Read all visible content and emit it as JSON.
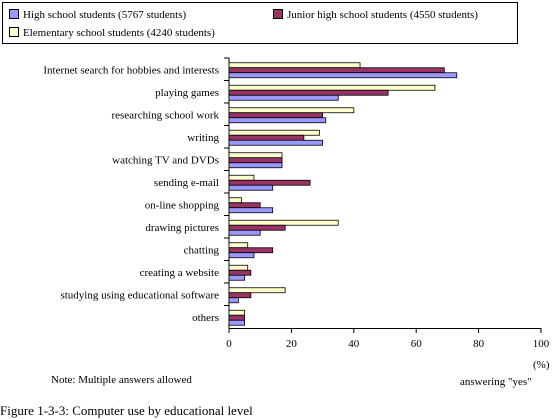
{
  "chart_data": {
    "type": "bar",
    "orientation": "horizontal",
    "categories": [
      "Internet search for hobbies and interests",
      "playing games",
      "researching school work",
      "writing",
      "watching TV and DVDs",
      "sending e-mail",
      "on-line shopping",
      "drawing pictures",
      "chatting",
      "creating a website",
      "studying using educational software",
      "others"
    ],
    "series": [
      {
        "name": "High school students (5767 students)",
        "color": "#9999ff",
        "values": [
          73,
          35,
          31,
          30,
          17,
          14,
          14,
          10,
          8,
          5,
          3,
          5
        ]
      },
      {
        "name": "Junior high school students (4550 students)",
        "color": "#993366",
        "values": [
          69,
          51,
          30,
          24,
          17,
          26,
          10,
          18,
          14,
          7,
          7,
          5
        ]
      },
      {
        "name": "Elementary school students (4240 students)",
        "color": "#ffffcc",
        "values": [
          42,
          66,
          40,
          29,
          17,
          8,
          4,
          35,
          6,
          6,
          18,
          5
        ]
      }
    ],
    "xlim": [
      0,
      100
    ],
    "xticks": [
      "0",
      "20",
      "40",
      "60",
      "80",
      "100"
    ],
    "unit": "(%)",
    "xlabel": "answering \"yes\"",
    "legend_position": "top"
  },
  "note": "Note: Multiple answers allowed",
  "caption": "Figure 1-3-3: Computer use by educational level"
}
